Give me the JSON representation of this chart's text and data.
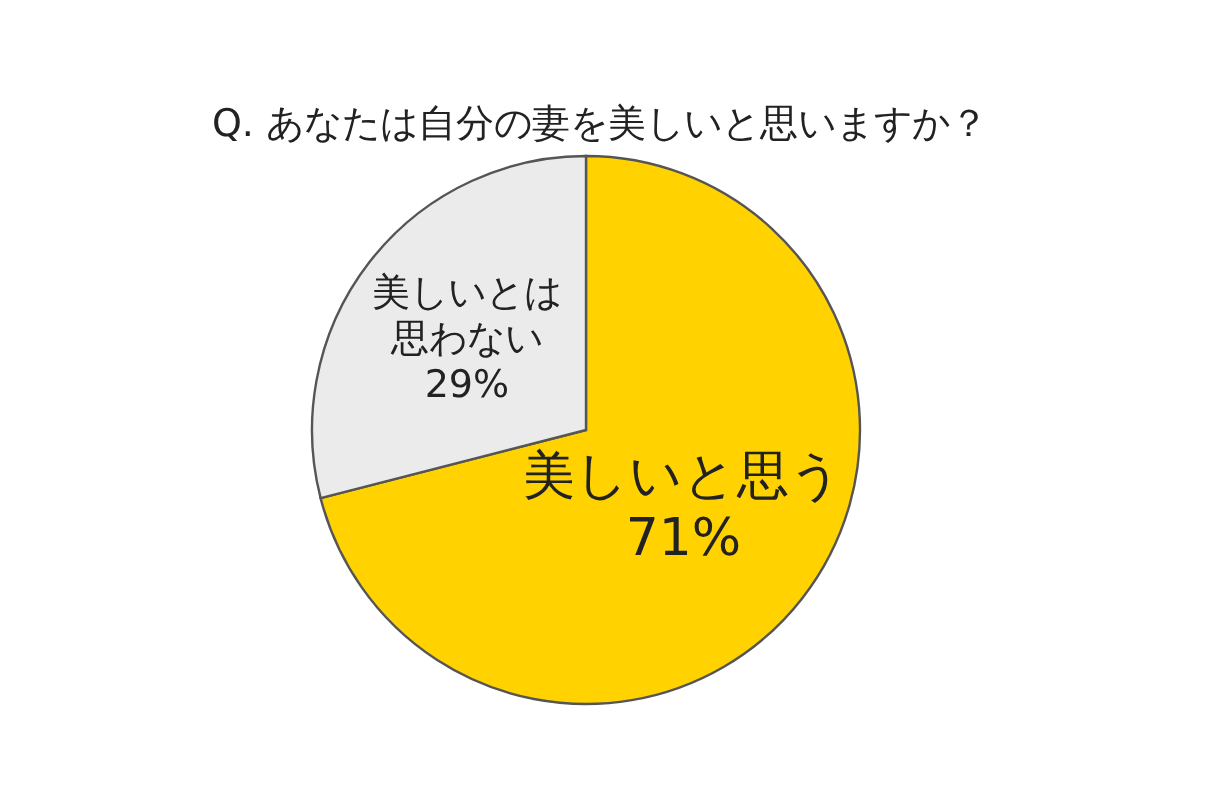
{
  "chart_data": {
    "type": "pie",
    "title": "Q. あなたは自分の妻を美しいと思いますか？",
    "categories": [
      "美しいと思う",
      "美しいとは思わない"
    ],
    "values": [
      71,
      29
    ],
    "colors": [
      "#ffd200",
      "#ebebeb"
    ],
    "value_labels": [
      "71%",
      "29%"
    ]
  }
}
